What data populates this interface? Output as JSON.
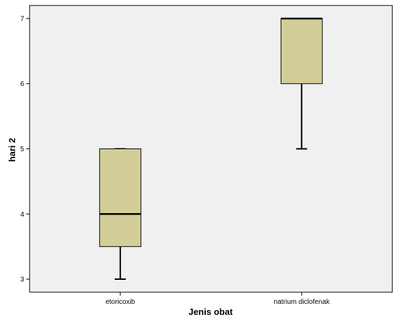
{
  "chart_data": {
    "type": "box",
    "xlabel": "Jenis obat",
    "ylabel": "hari 2",
    "ylim": [
      2.8,
      7.2
    ],
    "yticks": [
      3,
      4,
      5,
      6,
      7
    ],
    "categories": [
      "etoricoxib",
      "natrium diclofenak"
    ],
    "boxes": [
      {
        "category": "etoricoxib",
        "min": 3,
        "q1": 3.5,
        "median": 4,
        "q3": 5,
        "max": 5
      },
      {
        "category": "natrium diclofenak",
        "min": 5,
        "q1": 6,
        "median": 7,
        "q3": 7,
        "max": 7
      }
    ],
    "grid": false,
    "colors": {
      "plot_background": "#f0f0f0",
      "box_fill": "#d3ce97",
      "stroke": "#000000"
    }
  }
}
